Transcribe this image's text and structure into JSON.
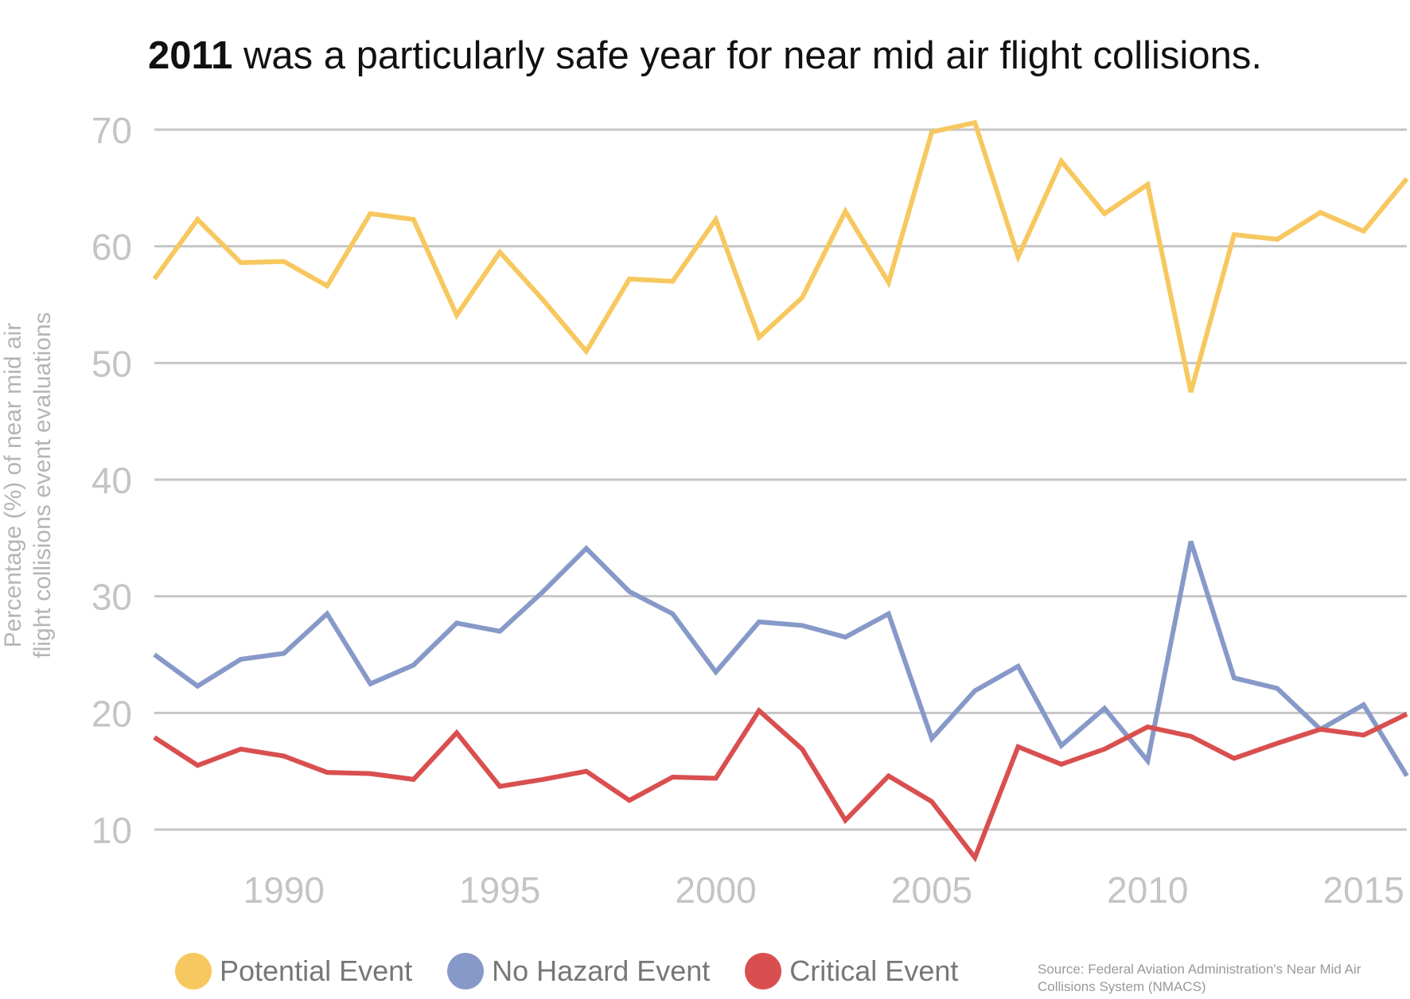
{
  "chart_data": {
    "type": "line",
    "title_bold": "2011",
    "title_rest": " was a particularly safe year for near mid air flight collisions.",
    "ylabel_line1": "Percentage (%) of near mid air",
    "ylabel_line2": "flight collisions event evaluations",
    "xlabel": "",
    "ylim": [
      6,
      72
    ],
    "xlim": [
      1987,
      2016
    ],
    "y_ticks": [
      10,
      20,
      30,
      40,
      50,
      60,
      70
    ],
    "x_ticks": [
      1990,
      1995,
      2000,
      2005,
      2010,
      2015
    ],
    "x": [
      1987,
      1988,
      1989,
      1990,
      1991,
      1992,
      1993,
      1994,
      1995,
      1996,
      1997,
      1998,
      1999,
      2000,
      2001,
      2002,
      2003,
      2004,
      2005,
      2006,
      2007,
      2008,
      2009,
      2010,
      2011,
      2012,
      2013,
      2014,
      2015,
      2016
    ],
    "series": [
      {
        "name": "Potential Event",
        "color": "#f7c85f",
        "values": [
          57.2,
          62.3,
          58.6,
          58.7,
          56.6,
          62.8,
          62.3,
          54.1,
          59.5,
          55.4,
          51.0,
          57.2,
          57.0,
          62.3,
          52.2,
          55.6,
          63.0,
          56.9,
          69.8,
          70.6,
          59.1,
          67.3,
          62.8,
          65.3,
          47.5,
          61.0,
          60.6,
          62.9,
          61.3,
          65.8
        ]
      },
      {
        "name": "No Hazard Event",
        "color": "#8799c8",
        "values": [
          25.0,
          22.3,
          24.6,
          25.1,
          28.5,
          22.5,
          24.1,
          27.7,
          27.0,
          30.4,
          34.1,
          30.4,
          28.5,
          23.5,
          27.8,
          27.5,
          26.5,
          28.5,
          17.8,
          21.9,
          24.0,
          17.2,
          20.4,
          15.9,
          34.7,
          23.0,
          22.1,
          18.6,
          20.7,
          14.6
        ]
      },
      {
        "name": "Critical Event",
        "color": "#d94f4f",
        "values": [
          17.9,
          15.5,
          16.9,
          16.3,
          14.9,
          14.8,
          14.3,
          18.3,
          13.7,
          14.3,
          15.0,
          12.5,
          14.5,
          14.4,
          20.2,
          16.9,
          10.8,
          14.6,
          12.4,
          7.6,
          17.1,
          15.6,
          16.9,
          18.8,
          18.0,
          16.1,
          17.4,
          18.6,
          18.1,
          19.9
        ]
      }
    ],
    "legend": [
      "Potential Event",
      "No Hazard Event",
      "Critical Event"
    ],
    "source_text": "Source: Federal Aviation Administration's Near Mid Air Collisions System (NMACS)"
  },
  "colors": {
    "grid": "#c6c6c6",
    "tick_text": "#c4c4c4"
  }
}
